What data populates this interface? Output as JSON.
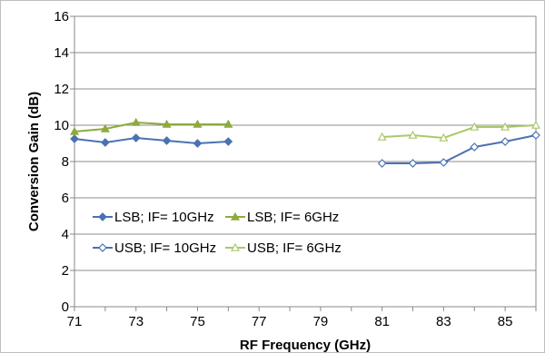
{
  "chart_data": {
    "type": "line",
    "title": "",
    "xlabel": "RF Frequency (GHz)",
    "ylabel": "Conversion Gain (dB)",
    "xlim": [
      71,
      86
    ],
    "ylim": [
      0,
      16
    ],
    "x_ticks": [
      71,
      73,
      75,
      77,
      79,
      81,
      83,
      85
    ],
    "y_ticks": [
      0,
      2,
      4,
      6,
      8,
      10,
      12,
      14,
      16
    ],
    "grid": "horizontal",
    "legend_position": "bottom-left",
    "series": [
      {
        "name": "LSB; IF= 10GHz",
        "color": "#4a72b0",
        "marker": "diamond-filled",
        "x": [
          71,
          72,
          73,
          74,
          75,
          76
        ],
        "y": [
          9.25,
          9.05,
          9.3,
          9.15,
          9.0,
          9.1
        ]
      },
      {
        "name": "LSB; IF= 6GHz",
        "color": "#8eaa3e",
        "marker": "triangle-filled",
        "x": [
          71,
          72,
          73,
          74,
          75,
          76
        ],
        "y": [
          9.65,
          9.8,
          10.15,
          10.05,
          10.05,
          10.05
        ]
      },
      {
        "name": "USB; IF= 10GHz",
        "color": "#4a72b0",
        "marker": "diamond-open",
        "x": [
          81,
          82,
          83,
          84,
          85,
          86
        ],
        "y": [
          7.9,
          7.9,
          7.95,
          8.8,
          9.1,
          9.45
        ]
      },
      {
        "name": "USB; IF= 6GHz",
        "color": "#a9c96a",
        "marker": "triangle-open",
        "x": [
          81,
          82,
          83,
          84,
          85,
          86
        ],
        "y": [
          9.35,
          9.45,
          9.3,
          9.9,
          9.9,
          10.0
        ]
      }
    ]
  }
}
